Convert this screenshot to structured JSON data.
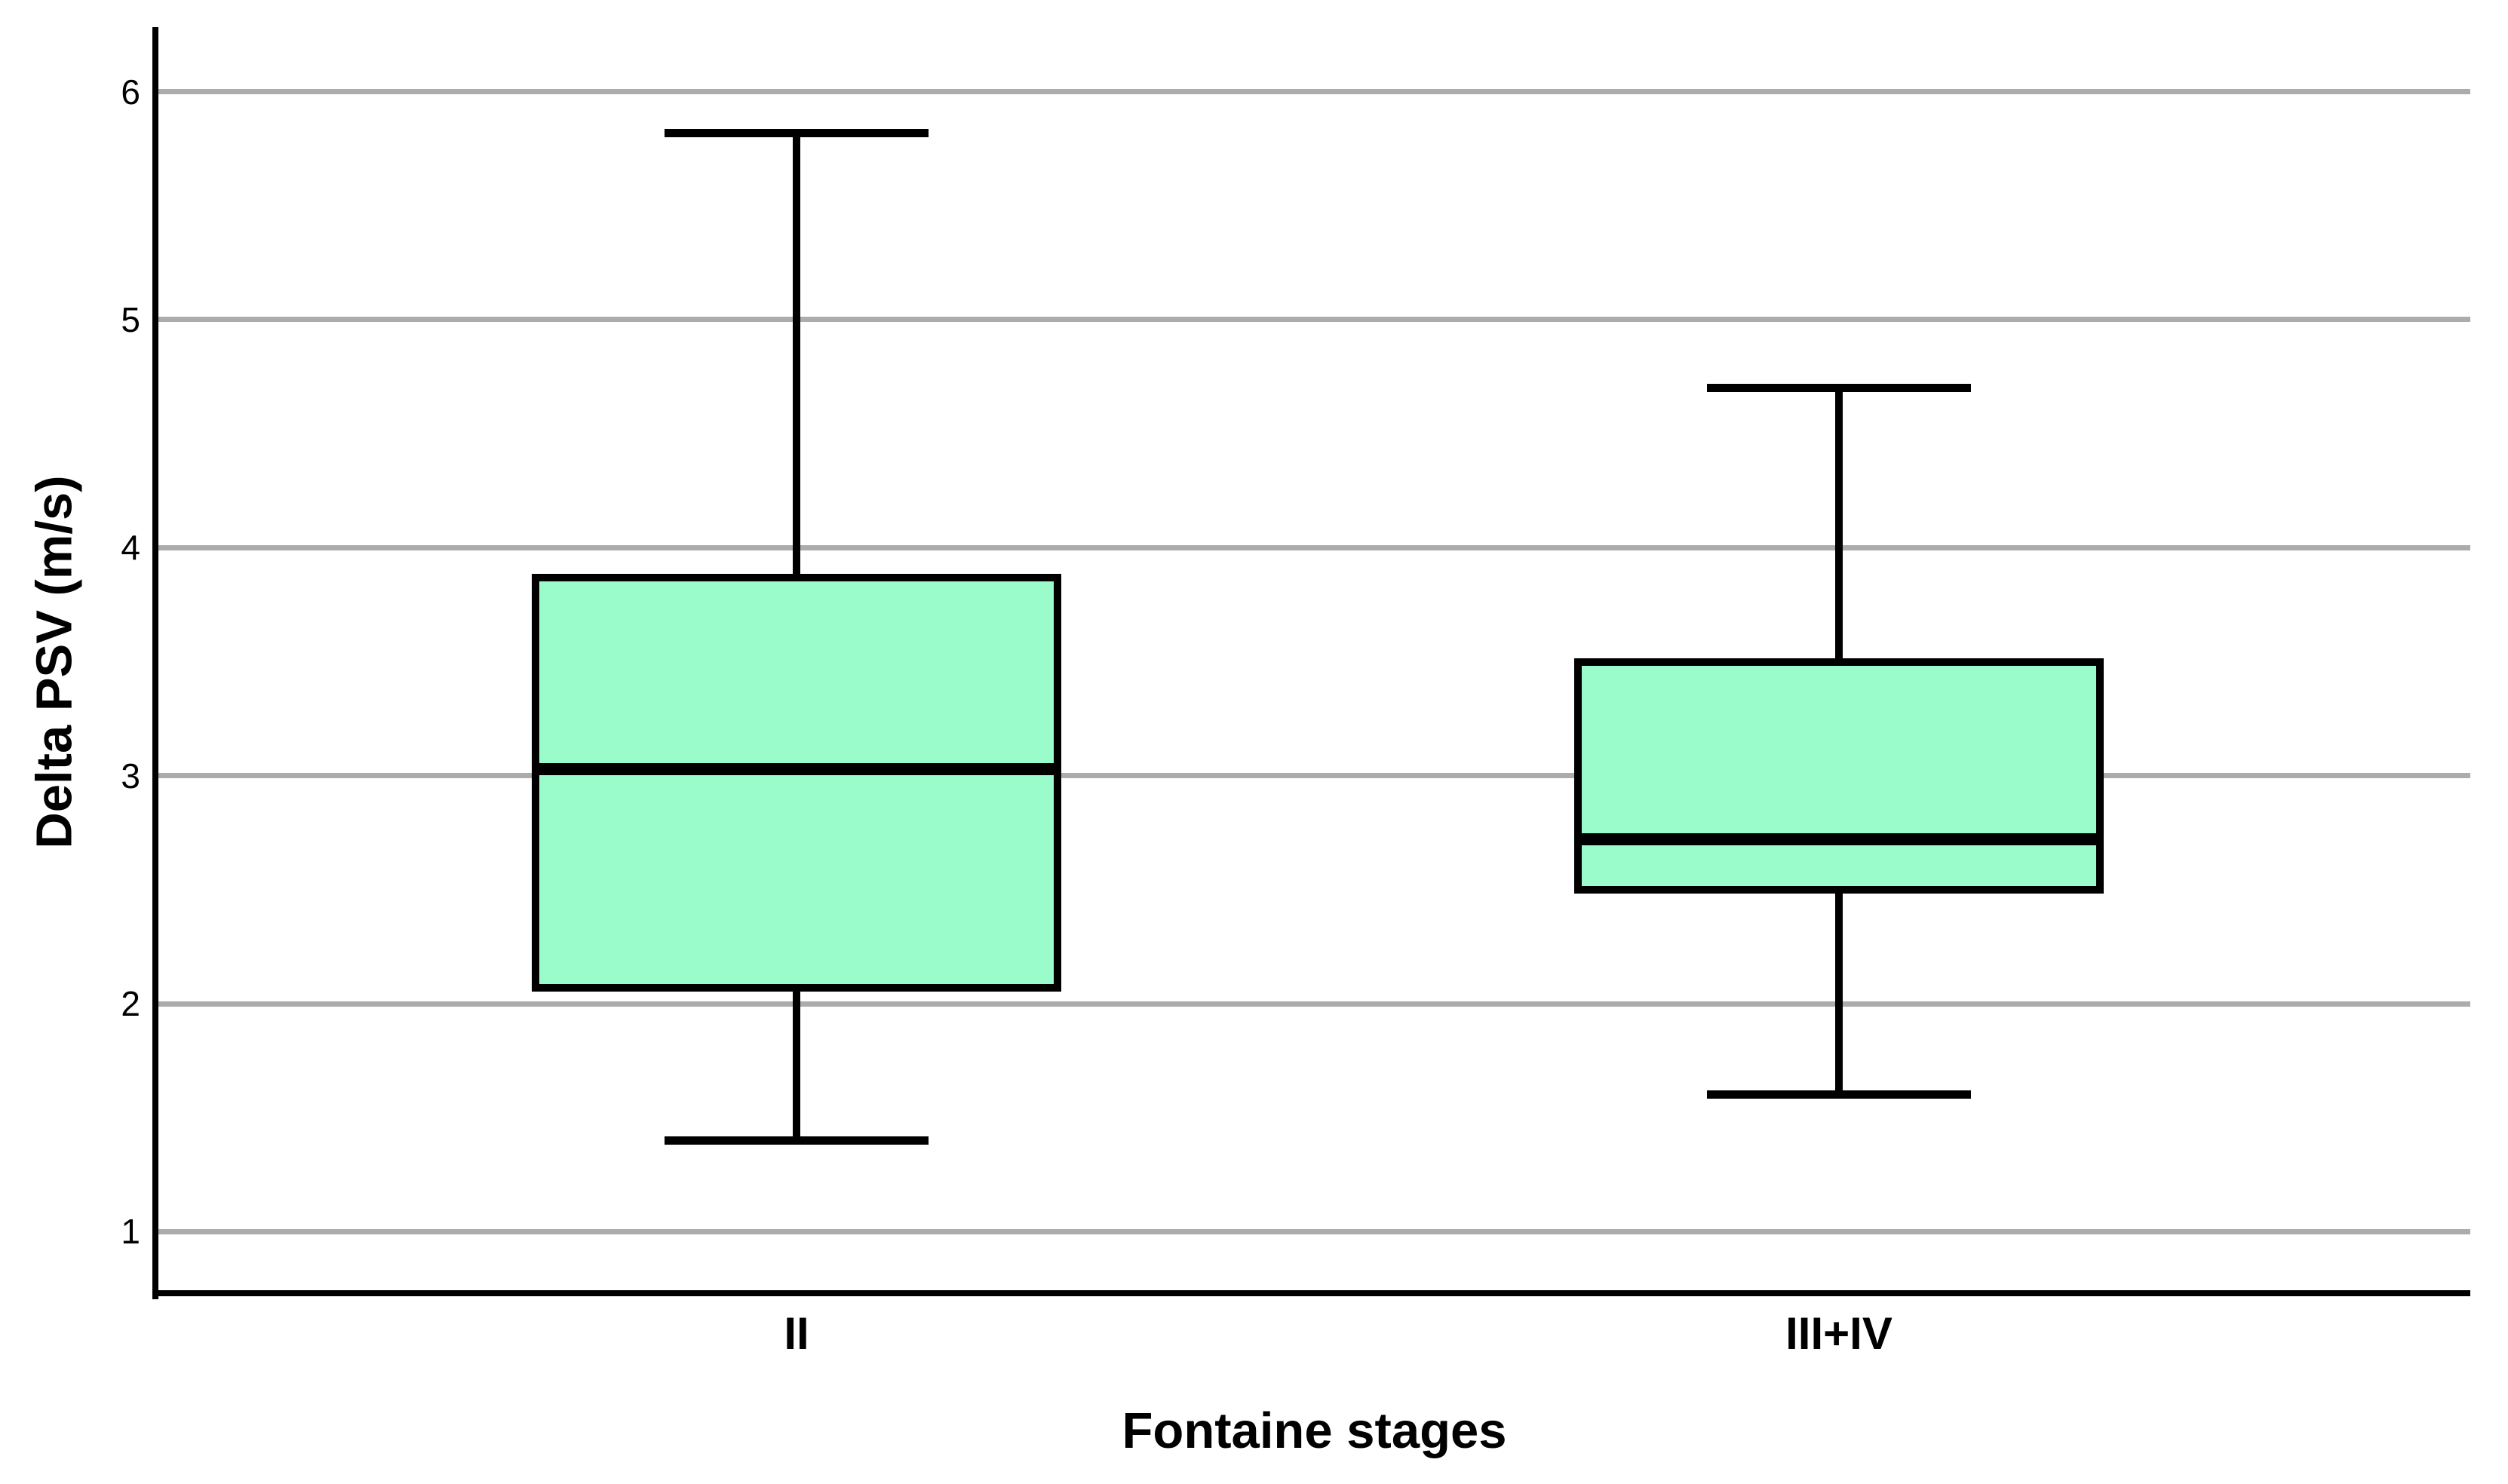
{
  "figure": {
    "background": "#FFFFFF"
  },
  "chart_data": {
    "type": "box",
    "title": "",
    "xlabel": "Fontaine stages",
    "ylabel": "Delta PSV (m/s)",
    "categories": [
      "II",
      "III+IV"
    ],
    "series": [
      {
        "name": "II",
        "min": 1.4,
        "q1": 2.07,
        "median": 3.03,
        "q3": 3.87,
        "max": 5.82
      },
      {
        "name": "III+IV",
        "min": 1.6,
        "q1": 2.5,
        "median": 2.72,
        "q3": 3.5,
        "max": 4.7
      }
    ],
    "y_ticks": [
      "1",
      "2",
      "3",
      "4",
      "5",
      "6"
    ],
    "ylim": [
      0.73,
      6.27
    ],
    "grid": "horizontal",
    "legend": "none",
    "colors": {
      "box_fill": "#99FCCA",
      "box_border": "#000000",
      "median": "#000000",
      "whisker": "#000000",
      "gridline": "#ACACAC",
      "axis": "#000000",
      "text": "#000000",
      "background": "#FFFFFF"
    }
  }
}
